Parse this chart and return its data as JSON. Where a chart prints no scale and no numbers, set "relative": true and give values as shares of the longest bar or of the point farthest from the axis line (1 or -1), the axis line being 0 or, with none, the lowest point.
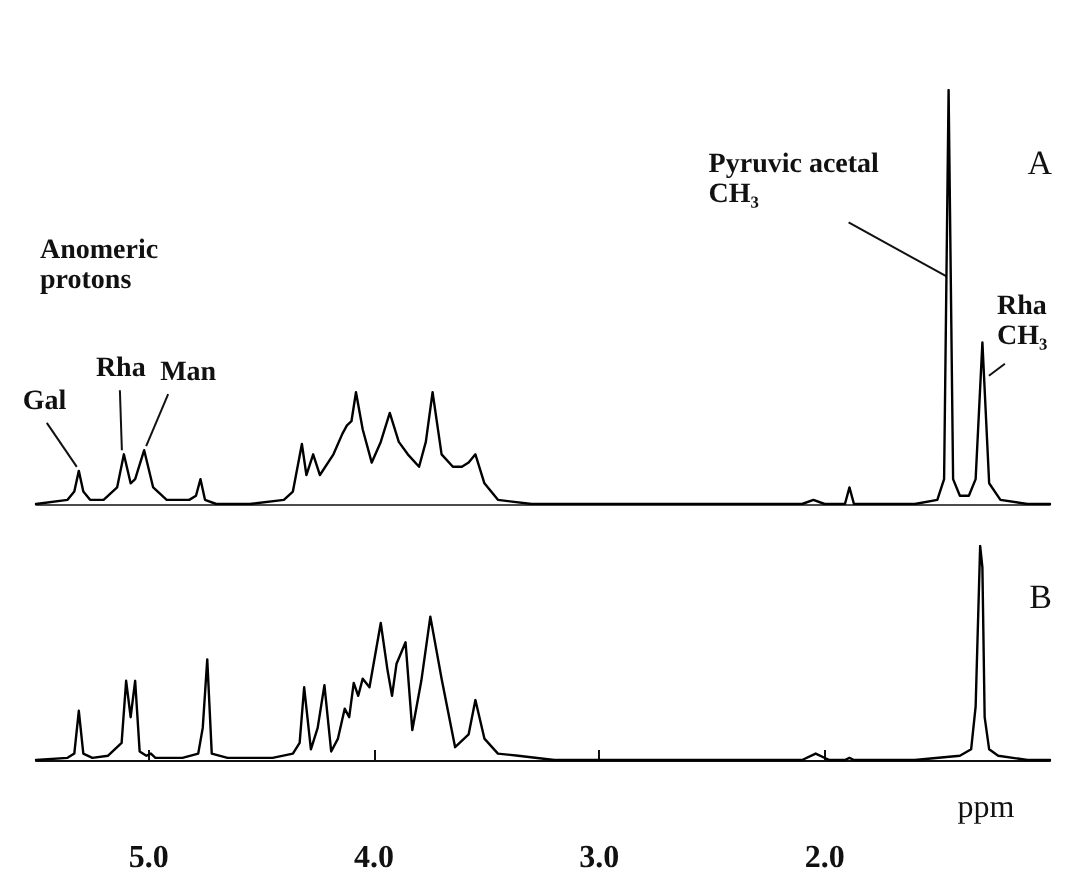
{
  "chart_data": [
    {
      "type": "line",
      "title": "A",
      "relative": true,
      "tick_labels": false,
      "xlim": [
        5.5,
        1.0
      ],
      "grid": false,
      "marker": "none",
      "line_style": "solid",
      "annotations": [
        "Anomeric protons",
        {
          "text": "Gal",
          "x": 5.31,
          "y": 0.08
        },
        {
          "text": "Rha",
          "x": 5.11,
          "y": 0.12
        },
        {
          "text": "Man",
          "x": 5.02,
          "y": 0.13
        },
        {
          "text": "Pyruvic acetal CH₃",
          "x": 1.45,
          "y": 0.54
        },
        {
          "text": "Rha CH₃",
          "x": 1.28,
          "y": 0.3
        }
      ],
      "series": [
        {
          "color": "#000000",
          "x": [
            5.5,
            5.36,
            5.33,
            5.31,
            5.29,
            5.26,
            5.2,
            5.14,
            5.11,
            5.08,
            5.06,
            5.02,
            4.98,
            4.92,
            4.82,
            4.79,
            4.77,
            4.75,
            4.7,
            4.55,
            4.4,
            4.36,
            4.32,
            4.3,
            4.27,
            4.24,
            4.18,
            4.14,
            4.12,
            4.1,
            4.08,
            4.05,
            4.01,
            3.97,
            3.93,
            3.89,
            3.85,
            3.8,
            3.77,
            3.74,
            3.7,
            3.65,
            3.61,
            3.58,
            3.55,
            3.51,
            3.45,
            3.3,
            2.8,
            2.1,
            2.05,
            2.0,
            1.91,
            1.89,
            1.87,
            1.6,
            1.5,
            1.47,
            1.45,
            1.43,
            1.4,
            1.36,
            1.33,
            1.3,
            1.27,
            1.22,
            1.1,
            1.0
          ],
          "values": [
            0.0,
            0.01,
            0.03,
            0.08,
            0.03,
            0.01,
            0.01,
            0.04,
            0.12,
            0.05,
            0.06,
            0.13,
            0.04,
            0.01,
            0.01,
            0.02,
            0.06,
            0.01,
            0.0,
            0.0,
            0.01,
            0.03,
            0.145,
            0.07,
            0.12,
            0.07,
            0.12,
            0.17,
            0.19,
            0.2,
            0.27,
            0.18,
            0.1,
            0.15,
            0.22,
            0.15,
            0.12,
            0.09,
            0.15,
            0.27,
            0.12,
            0.09,
            0.09,
            0.1,
            0.12,
            0.05,
            0.01,
            0.0,
            0.0,
            0.0,
            0.01,
            0.0,
            0.0,
            0.04,
            0.0,
            0.0,
            0.01,
            0.06,
            1.0,
            0.06,
            0.02,
            0.02,
            0.06,
            0.39,
            0.05,
            0.01,
            0.0,
            0.0
          ]
        }
      ]
    },
    {
      "type": "line",
      "title": "B",
      "relative": true,
      "tick_labels": "x",
      "xlabel": "ppm",
      "xlim": [
        5.5,
        1.0
      ],
      "xticks": [
        {
          "value": 5.0,
          "label": "5.0"
        },
        {
          "value": 4.0,
          "label": "4.0"
        },
        {
          "value": 3.0,
          "label": "3.0"
        },
        {
          "value": 2.0,
          "label": "2.0"
        }
      ],
      "grid": false,
      "marker": "none",
      "line_style": "solid",
      "series": [
        {
          "color": "#000000",
          "x": [
            5.5,
            5.36,
            5.33,
            5.31,
            5.29,
            5.25,
            5.18,
            5.12,
            5.1,
            5.08,
            5.06,
            5.04,
            5.01,
            4.99,
            4.97,
            4.85,
            4.78,
            4.76,
            4.74,
            4.72,
            4.65,
            4.45,
            4.36,
            4.33,
            4.31,
            4.28,
            4.25,
            4.22,
            4.19,
            4.16,
            4.13,
            4.11,
            4.09,
            4.07,
            4.05,
            4.02,
            3.97,
            3.94,
            3.92,
            3.9,
            3.86,
            3.83,
            3.79,
            3.75,
            3.7,
            3.64,
            3.58,
            3.55,
            3.51,
            3.45,
            3.36,
            3.2,
            2.5,
            2.1,
            2.04,
            1.98,
            1.91,
            1.89,
            1.87,
            1.6,
            1.4,
            1.35,
            1.33,
            1.31,
            1.3,
            1.29,
            1.27,
            1.23,
            1.1,
            1.0
          ],
          "values": [
            0.0,
            0.01,
            0.03,
            0.23,
            0.03,
            0.01,
            0.02,
            0.08,
            0.37,
            0.2,
            0.37,
            0.04,
            0.02,
            0.03,
            0.01,
            0.01,
            0.03,
            0.15,
            0.47,
            0.03,
            0.01,
            0.01,
            0.03,
            0.08,
            0.34,
            0.05,
            0.15,
            0.35,
            0.04,
            0.1,
            0.24,
            0.2,
            0.36,
            0.3,
            0.38,
            0.34,
            0.64,
            0.42,
            0.3,
            0.45,
            0.55,
            0.14,
            0.37,
            0.67,
            0.38,
            0.06,
            0.12,
            0.28,
            0.1,
            0.03,
            0.02,
            0.0,
            0.0,
            0.0,
            0.03,
            0.0,
            0.0,
            0.01,
            0.0,
            0.0,
            0.02,
            0.05,
            0.25,
            1.0,
            0.9,
            0.2,
            0.05,
            0.02,
            0.0,
            0.0
          ]
        }
      ]
    }
  ]
}
